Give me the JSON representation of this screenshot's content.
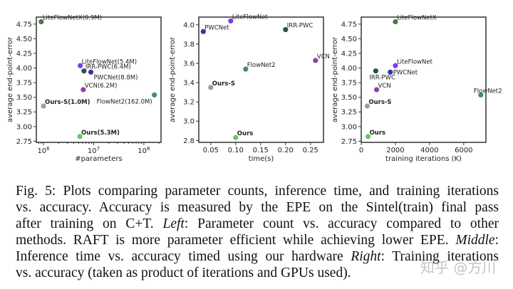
{
  "chart_data": [
    {
      "type": "scatter",
      "xlabel": "#parameters",
      "ylabel": "average end-point-error",
      "xscale": "log",
      "xlim": [
        720000,
        220000000
      ],
      "ylim": [
        2.73,
        4.87
      ],
      "xticks": [
        {
          "value": 1000000,
          "base": "10",
          "exp": "6"
        },
        {
          "value": 10000000,
          "base": "10",
          "exp": "7"
        },
        {
          "value": 100000000,
          "base": "10",
          "exp": "8"
        }
      ],
      "yticks": [
        "2.75",
        "3.00",
        "3.25",
        "3.50",
        "3.75",
        "4.00",
        "4.25",
        "4.50",
        "4.75"
      ],
      "points": [
        {
          "label": "LiteFlowNetX(0.9M)",
          "x": 900000,
          "y": 4.79,
          "color": "#4b7a44",
          "bold": false
        },
        {
          "label": "LiteFlowNet(5.4M)",
          "x": 5400000,
          "y": 4.04,
          "color": "#7a3ee0",
          "bold": false
        },
        {
          "label": "IRR-PWC(6.4M)",
          "x": 6400000,
          "y": 3.95,
          "color": "#2e4d58",
          "bold": false
        },
        {
          "label": "PWCNet(8.8M)",
          "x": 8800000,
          "y": 3.93,
          "color": "#3a33a2",
          "bold": false
        },
        {
          "label": "VCN(6.2M)",
          "x": 6200000,
          "y": 3.63,
          "color": "#9140aa",
          "bold": false
        },
        {
          "label": "FlowNet2(162.0M)",
          "x": 162000000,
          "y": 3.54,
          "color": "#3f8e72",
          "bold": false
        },
        {
          "label": "Ours-S(1.0M)",
          "x": 1000000,
          "y": 3.35,
          "color": "#8fa0a8",
          "bold": true
        },
        {
          "label": "Ours(5.3M)",
          "x": 5300000,
          "y": 2.83,
          "color": "#6cc46a",
          "bold": true
        }
      ]
    },
    {
      "type": "scatter",
      "xlabel": "time(s)",
      "ylabel": "average end-point-error",
      "xscale": "linear",
      "xlim": [
        0.026,
        0.276
      ],
      "ylim": [
        2.78,
        4.08
      ],
      "xticks": [
        {
          "value": 0.05,
          "label": "0.05"
        },
        {
          "value": 0.1,
          "label": "0.10"
        },
        {
          "value": 0.15,
          "label": "0.15"
        },
        {
          "value": 0.2,
          "label": "0.20"
        },
        {
          "value": 0.25,
          "label": "0.25"
        }
      ],
      "yticks": [
        "2.8",
        "3.0",
        "3.2",
        "3.4",
        "3.6",
        "3.8",
        "4.0"
      ],
      "points": [
        {
          "label": "LiteFlowNet",
          "x": 0.09,
          "y": 4.04,
          "color": "#7a3ee0",
          "bold": false
        },
        {
          "label": "PWCNet",
          "x": 0.035,
          "y": 3.93,
          "color": "#3a33a2",
          "bold": false
        },
        {
          "label": "IRR-PWC",
          "x": 0.2,
          "y": 3.95,
          "color": "#2e4d58",
          "bold": false
        },
        {
          "label": "VCN",
          "x": 0.26,
          "y": 3.63,
          "color": "#9140aa",
          "bold": false
        },
        {
          "label": "FlowNet2",
          "x": 0.12,
          "y": 3.54,
          "color": "#3f8e72",
          "bold": false
        },
        {
          "label": "Ours-S",
          "x": 0.05,
          "y": 3.35,
          "color": "#8fa0a8",
          "bold": true
        },
        {
          "label": "Ours",
          "x": 0.1,
          "y": 2.83,
          "color": "#6cc46a",
          "bold": true
        }
      ]
    },
    {
      "type": "scatter",
      "xlabel": "training iterations (K)",
      "ylabel": "average end-point-error",
      "xscale": "linear",
      "xlim": [
        0,
        7300
      ],
      "ylim": [
        2.73,
        4.87
      ],
      "xticks": [
        {
          "value": 0,
          "label": "0"
        },
        {
          "value": 2000,
          "label": "2000"
        },
        {
          "value": 4000,
          "label": "4000"
        },
        {
          "value": 6000,
          "label": "6000"
        }
      ],
      "yticks": [
        "2.75",
        "3.00",
        "3.25",
        "3.50",
        "3.75",
        "4.00",
        "4.25",
        "4.50",
        "4.75"
      ],
      "points": [
        {
          "label": "LiteFlowNetX",
          "x": 2000,
          "y": 4.79,
          "color": "#4b7a44",
          "bold": false
        },
        {
          "label": "LiteFlowNet",
          "x": 2000,
          "y": 4.04,
          "color": "#7a3ee0",
          "bold": false
        },
        {
          "label": "IRR-PWC",
          "x": 850,
          "y": 3.95,
          "color": "#2e4d58",
          "bold": false
        },
        {
          "label": "PWCNet",
          "x": 1700,
          "y": 3.93,
          "color": "#3a33a2",
          "bold": false
        },
        {
          "label": "VCN",
          "x": 900,
          "y": 3.63,
          "color": "#9140aa",
          "bold": false
        },
        {
          "label": "FlowNet2",
          "x": 7000,
          "y": 3.54,
          "color": "#3f8e72",
          "bold": false
        },
        {
          "label": "Ours-S",
          "x": 350,
          "y": 3.35,
          "color": "#8fa0a8",
          "bold": true
        },
        {
          "label": "Ours",
          "x": 400,
          "y": 2.83,
          "color": "#6cc46a",
          "bold": true
        }
      ]
    }
  ],
  "caption": {
    "line1": "Fig. 5: Plots comparing parameter counts, inference time, and training iterations",
    "line2": "vs. accuracy. Accuracy is measured by the EPE on the Sintel(train) final pass",
    "line3a": "after training on C+T. ",
    "line3b": "Left",
    "line3c": ": Parameter count vs. accuracy compared to other",
    "line4a": "methods. RAFT is more parameter efficient while achieving lower EPE. ",
    "line4b": "Middle",
    "line4c": ":",
    "line5a": "Inference time vs. accuracy timed using our hardware ",
    "line5b": "Right",
    "line5c": ": Training iterations",
    "line6": "vs. accuracy (taken as product of iterations and GPUs used)."
  },
  "watermark": "知乎 @方川"
}
